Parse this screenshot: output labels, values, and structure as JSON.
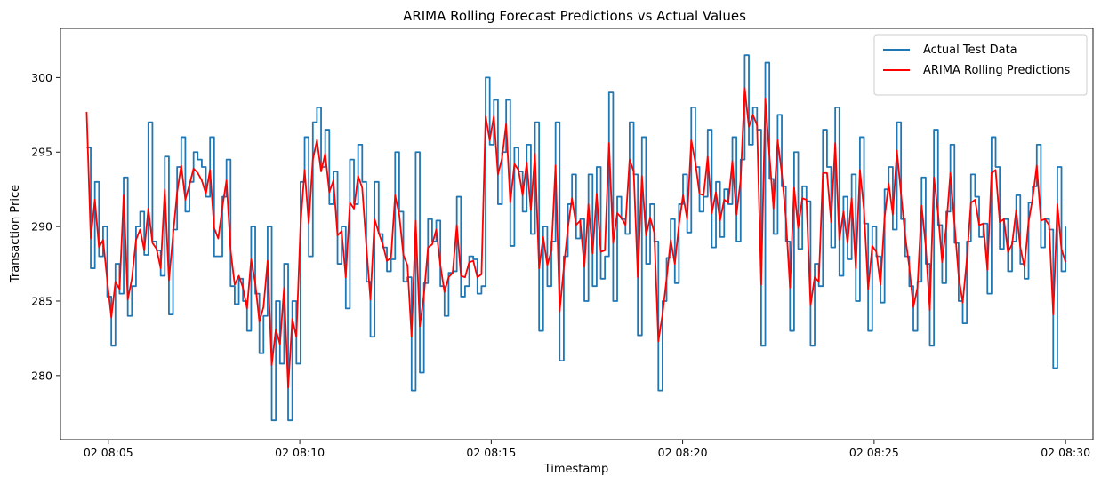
{
  "chart_data": {
    "type": "line",
    "title": "ARIMA Rolling Forecast Predictions vs Actual Values",
    "xlabel": "Timestamp",
    "ylabel": "Transaction Price",
    "x_start": "02 08:04:26",
    "x_end": "02 08:30:00",
    "xlim": [
      "02 08:03:45",
      "02 08:30:43"
    ],
    "ylim": [
      275.7,
      303.3
    ],
    "x_ticks": [
      "02 08:05",
      "02 08:10",
      "02 08:15",
      "02 08:20",
      "02 08:25",
      "02 08:30"
    ],
    "y_ticks": [
      280,
      285,
      290,
      295,
      300
    ],
    "legend": {
      "placement": "top-right"
    },
    "series": [
      {
        "name": "Actual Test Data",
        "color": "#1f77b4",
        "step": true,
        "values": [
          295.3,
          287.2,
          293,
          288,
          290,
          285.3,
          282,
          287.5,
          285.5,
          293.3,
          284,
          286,
          290,
          291,
          288.1,
          297,
          289,
          288.4,
          286.7,
          294.7,
          284.1,
          289.8,
          294,
          296,
          291,
          293,
          295,
          294.5,
          294,
          292,
          296,
          288,
          288,
          292,
          294.5,
          286,
          284.8,
          286.5,
          285,
          283,
          290,
          285.5,
          281.5,
          284,
          290,
          277,
          285,
          280.8,
          287.5,
          277,
          285,
          280.8,
          293,
          296,
          288,
          297,
          298,
          294,
          296.5,
          291.5,
          293.7,
          287.5,
          290,
          284.5,
          294.5,
          291.5,
          295.5,
          293,
          286.3,
          282.6,
          293,
          289.5,
          288.6,
          287,
          287.8,
          295,
          291,
          286.3,
          286.6,
          279,
          295,
          280.2,
          286.2,
          290.5,
          289,
          290.4,
          286,
          284,
          286.9,
          287,
          292,
          285.3,
          286,
          288,
          287.8,
          285.5,
          286,
          300,
          295.5,
          298.5,
          291.5,
          295,
          298.5,
          288.7,
          295.3,
          293.7,
          291,
          295.5,
          289.5,
          297,
          283,
          290,
          286,
          289,
          297,
          281,
          288,
          291.5,
          293.5,
          289.2,
          290.5,
          285,
          293.5,
          286,
          294,
          286.5,
          288,
          299,
          285,
          292,
          290.5,
          289.5,
          297,
          293.5,
          282.7,
          296,
          287.5,
          291.5,
          289,
          279,
          285,
          287.9,
          290.5,
          286.2,
          291.5,
          293.5,
          289.6,
          298,
          294,
          291,
          292,
          296.5,
          288.6,
          293,
          289.3,
          292.5,
          291.5,
          296,
          289,
          294.5,
          301.5,
          295.5,
          298,
          296.5,
          282,
          301,
          293.2,
          289.5,
          297.5,
          292.7,
          289,
          283,
          295,
          288.5,
          292.7,
          291.7,
          282,
          287.5,
          286,
          296.5,
          294,
          288.6,
          298,
          286.7,
          292,
          287.8,
          293.5,
          285,
          296,
          290.2,
          283,
          290,
          288,
          284.9,
          292.5,
          294,
          289.8,
          297,
          290.5,
          288,
          286,
          283,
          286.3,
          293.3,
          287.5,
          282,
          296.5,
          290.1,
          286.2,
          291,
          295.5,
          288.9,
          285,
          283.5,
          289,
          293.5,
          292,
          289.3,
          290.2,
          285.5,
          296,
          294,
          288.5,
          290.5,
          287,
          289,
          292.1,
          287.5,
          286.5,
          291.6,
          292.7,
          295.5,
          288.6,
          290.5,
          289.8,
          280.5,
          294,
          287,
          290
        ]
      },
      {
        "name": "ARIMA Rolling Predictions",
        "color": "#ff0000",
        "step": false,
        "values": [
          297.7,
          289.2,
          291.8,
          288.6,
          289.1,
          286.4,
          283.9,
          286.3,
          285.8,
          292.1,
          285.1,
          286.5,
          289.1,
          289.8,
          288.4,
          291.2,
          288.9,
          288.5,
          287.2,
          292.5,
          286.4,
          289.4,
          292.3,
          294.1,
          291.8,
          292.8,
          293.9,
          293.6,
          293.1,
          292.2,
          293.8,
          289.9,
          289.2,
          291.3,
          293.1,
          288.4,
          286.1,
          286.7,
          285.9,
          284.5,
          287.8,
          286.2,
          283.6,
          284.6,
          287.7,
          280.7,
          283.1,
          282.1,
          285.9,
          279.2,
          283.8,
          282.6,
          290.1,
          293.8,
          290.2,
          294.5,
          295.8,
          293.7,
          294.9,
          292.3,
          293.1,
          289.4,
          289.7,
          286.6,
          291.6,
          291.2,
          293.4,
          292.6,
          288.7,
          285.1,
          290.5,
          289.6,
          288.8,
          287.7,
          287.9,
          292.1,
          290.8,
          288.1,
          287.4,
          282.6,
          290.4,
          283.3,
          285.4,
          288.6,
          288.8,
          289.8,
          287.4,
          285.6,
          286.6,
          286.9,
          290.1,
          286.7,
          286.6,
          287.6,
          287.7,
          286.6,
          286.8,
          297.4,
          295.8,
          297.4,
          293.5,
          294.6,
          296.9,
          291.6,
          294.2,
          293.8,
          292.1,
          294.3,
          291.1,
          294.9,
          287.2,
          289.3,
          287.4,
          288.4,
          294.1,
          284.3,
          287.2,
          289.9,
          291.9,
          290.1,
          290.4,
          287.3,
          291.5,
          288.2,
          292.2,
          288.3,
          288.4,
          295.6,
          288.9,
          290.9,
          290.6,
          290.1,
          294.5,
          293.7,
          286.6,
          293.4,
          289.4,
          290.6,
          289.6,
          282.3,
          284.1,
          286.5,
          289.1,
          287.5,
          290.1,
          292.1,
          290.5,
          295.8,
          294.3,
          292.2,
          292.1,
          294.7,
          290.9,
          292.3,
          290.4,
          291.8,
          291.6,
          294.4,
          290.8,
          293.1,
          299.3,
          296.7,
          297.5,
          296.8,
          286.1,
          298.6,
          294.8,
          291.2,
          295.8,
          293.6,
          290.6,
          285.9,
          292.6,
          289.9,
          291.9,
          291.8,
          284.7,
          286.6,
          286.3,
          293.6,
          293.6,
          290.3,
          295.6,
          289.1,
          291,
          288.9,
          291.9,
          287.2,
          293.8,
          291.1,
          285.8,
          288.7,
          288.3,
          286.1,
          290.6,
          292.9,
          290.8,
          295.1,
          292.2,
          289.4,
          287.3,
          284.6,
          285.9,
          291.4,
          288.7,
          284.4,
          293.3,
          290.9,
          287.6,
          290,
          293.6,
          290.2,
          286.7,
          284.9,
          287.8,
          291.6,
          291.8,
          290.1,
          290.2,
          287.1,
          293.6,
          293.8,
          290.3,
          290.5,
          288.3,
          288.8,
          291.1,
          288.6,
          287.3,
          290.3,
          291.9,
          294.1,
          290.4,
          290.5,
          290.1,
          284.1,
          291.5,
          288.5,
          287.6
        ]
      }
    ]
  }
}
